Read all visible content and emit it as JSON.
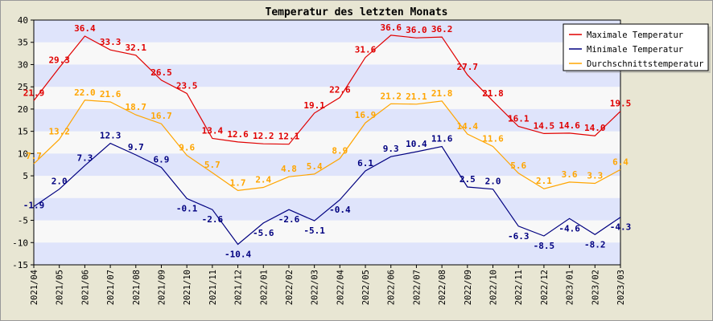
{
  "chart_data": {
    "type": "line",
    "title": "Temperatur des letzten Monats",
    "xlabel": "",
    "ylabel": "",
    "categories": [
      "2021/04",
      "2021/05",
      "2021/06",
      "2021/07",
      "2021/08",
      "2021/09",
      "2021/10",
      "2021/11",
      "2021/12",
      "2022/01",
      "2022/02",
      "2022/03",
      "2022/04",
      "2022/05",
      "2022/06",
      "2022/07",
      "2022/08",
      "2022/09",
      "2022/10",
      "2022/11",
      "2022/12",
      "2023/01",
      "2023/02",
      "2023/03"
    ],
    "ylim": [
      -15,
      40
    ],
    "yticks": [
      -15,
      -10,
      -5,
      5,
      10,
      15,
      20,
      25,
      30,
      35,
      40
    ],
    "grid": "horizontal bands",
    "legend_position": "top-right",
    "series": [
      {
        "name": "Maximale Temperatur",
        "color": "#e00000",
        "values": [
          21.9,
          29.3,
          36.4,
          33.3,
          32.1,
          26.5,
          23.5,
          13.4,
          12.6,
          12.2,
          12.1,
          19.1,
          22.6,
          31.6,
          36.6,
          36.0,
          36.2,
          27.7,
          21.8,
          16.1,
          14.5,
          14.6,
          14.0,
          19.5
        ],
        "labels": [
          "21.9",
          "29.3",
          "36.4",
          "33.3",
          "32.1",
          "26.5",
          "23.5",
          "13.4",
          "12.6",
          "12.2",
          "12.1",
          "19.1",
          "22.6",
          "31.6",
          "36.6",
          "36.0",
          "36.2",
          "27.7",
          "21.8",
          "16.1",
          "14.5",
          "14.6",
          "14.0",
          "19.5"
        ]
      },
      {
        "name": "Minimale Temperatur",
        "color": "#000080",
        "values": [
          -1.9,
          2.0,
          7.3,
          12.3,
          9.7,
          6.9,
          -0.1,
          -2.6,
          -10.4,
          -5.6,
          -2.6,
          -5.1,
          -0.4,
          6.1,
          9.3,
          10.4,
          11.6,
          2.5,
          2.0,
          -6.3,
          -8.5,
          -4.6,
          -8.2,
          -4.3
        ],
        "labels": [
          "-1.9",
          "2.0",
          "7.3",
          "12.3",
          "9.7",
          "6.9",
          "-0.1",
          "-2.6",
          "-10.4",
          "-5.6",
          "-2.6",
          "-5.1",
          "-0.4",
          "6.1",
          "9.3",
          "10.4",
          "11.6",
          "2.5",
          "2.0",
          "-6.3",
          "-8.5",
          "-4.6",
          "-8.2",
          "-4.3"
        ]
      },
      {
        "name": "Durchschnittstemperatur",
        "color": "#ffa500",
        "values": [
          7.7,
          13.2,
          22.0,
          21.6,
          18.7,
          16.7,
          9.6,
          5.7,
          1.7,
          2.4,
          4.8,
          5.4,
          8.9,
          16.9,
          21.2,
          21.1,
          21.8,
          14.4,
          11.6,
          5.6,
          2.1,
          3.6,
          3.3,
          6.4
        ],
        "labels": [
          "7.7",
          "13.2",
          "22.0",
          "21.6",
          "18.7",
          "16.7",
          "9.6",
          "5.7",
          "1.7",
          "2.4",
          "4.8",
          "5.4",
          "8.9",
          "16.9",
          "21.2",
          "21.1",
          "21.8",
          "14.4",
          "11.6",
          "5.6",
          "2.1",
          "3.6",
          "3.3",
          "6.4"
        ]
      }
    ]
  }
}
